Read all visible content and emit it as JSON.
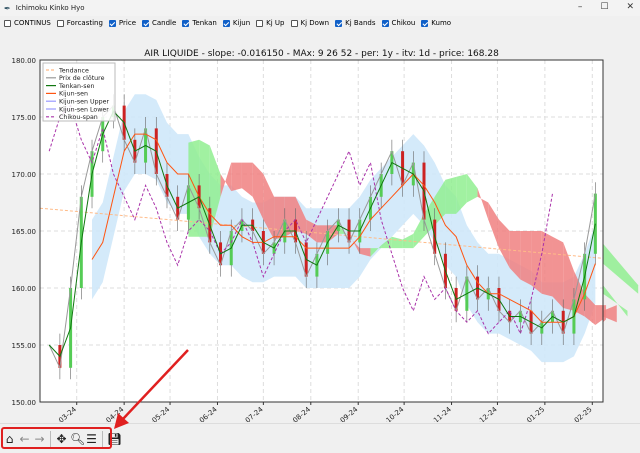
{
  "window": {
    "title": "Ichimoku Kinko Hyo"
  },
  "checkboxes": [
    {
      "label": "CONTINUS",
      "checked": false
    },
    {
      "label": "Forcasting",
      "checked": false
    },
    {
      "label": "Price",
      "checked": true
    },
    {
      "label": "Candle",
      "checked": true
    },
    {
      "label": "Tenkan",
      "checked": true
    },
    {
      "label": "Kijun",
      "checked": true
    },
    {
      "label": "Kj Up",
      "checked": false
    },
    {
      "label": "Kj Down",
      "checked": false
    },
    {
      "label": "Kj Bands",
      "checked": true
    },
    {
      "label": "Chikou",
      "checked": true
    },
    {
      "label": "Kumo",
      "checked": true
    }
  ],
  "toolbar": {
    "buttons": [
      "home-icon",
      "back-arrow-icon",
      "forward-arrow-icon",
      "pan-icon",
      "zoom-icon",
      "configure-subplots-icon",
      "save-icon"
    ]
  },
  "annotation": {
    "arrow_color": "#e02020"
  },
  "chart_data": {
    "type": "line",
    "title": "AIR LIQUIDE - slope: -0.016150 - MAx: 9 26 52 - per: 1y - itv: 1d - price: 168.28",
    "xlim": [
      "2024-02-06",
      "2025-02-08"
    ],
    "ylim": [
      150,
      180
    ],
    "yticks": [
      "150.00",
      "155.00",
      "160.00",
      "165.00",
      "170.00",
      "175.00",
      "180.00"
    ],
    "xticks": [
      {
        "date": "2024-03-01",
        "label": "01-03-24"
      },
      {
        "date": "2024-04-01",
        "label": "01-04-24"
      },
      {
        "date": "2024-05-01",
        "label": "01-05-24"
      },
      {
        "date": "2024-06-01",
        "label": "01-06-24"
      },
      {
        "date": "2024-07-01",
        "label": "01-07-24"
      },
      {
        "date": "2024-08-01",
        "label": "01-08-24"
      },
      {
        "date": "2024-09-01",
        "label": "01-09-24"
      },
      {
        "date": "2024-10-01",
        "label": "01-10-24"
      },
      {
        "date": "2024-11-01",
        "label": "01-11-24"
      },
      {
        "date": "2024-12-01",
        "label": "01-12-24"
      },
      {
        "date": "2025-01-01",
        "label": "01-01-25"
      },
      {
        "date": "2025-02-01",
        "label": "01-02-25"
      }
    ],
    "grid": true,
    "legend_position": "top-left",
    "legend": [
      {
        "name": "Tendance",
        "color": "#ffbb88",
        "dash": true
      },
      {
        "name": "Prix de clôture",
        "color": "#999999",
        "dash": false
      },
      {
        "name": "Tenkan-sen",
        "color": "#117711",
        "dash": false
      },
      {
        "name": "Kijun-sen",
        "color": "#ff5511",
        "dash": false
      },
      {
        "name": "Kijun-sen Upper",
        "color": "#9999ff",
        "dash": false
      },
      {
        "name": "Kijun-sen Lower",
        "color": "#9999ff",
        "dash": false
      },
      {
        "name": "Chikou-span",
        "color": "#aa33aa",
        "dash": true
      }
    ],
    "start_date": "2024-02-12",
    "interval_days": 7,
    "close": [
      155,
      153,
      160,
      168,
      172,
      175,
      176,
      173,
      171,
      174,
      170,
      168,
      166,
      169,
      167,
      164,
      162,
      165,
      166,
      165,
      163,
      164,
      166,
      164,
      161,
      163,
      165,
      166,
      164,
      166,
      168,
      170,
      172,
      169,
      171,
      166,
      163,
      160,
      158,
      161,
      159,
      160,
      158,
      157,
      158,
      156,
      157,
      158,
      156,
      159,
      163,
      168.28
    ],
    "trend": {
      "start": 167,
      "end": 162.6
    },
    "colors": {
      "kumo_bull": "#90ee90",
      "kumo_bear": "#f08080",
      "kj_bands": "#cfe8fa",
      "candle_up": "#55cc55",
      "candle_down": "#cc2222"
    }
  }
}
